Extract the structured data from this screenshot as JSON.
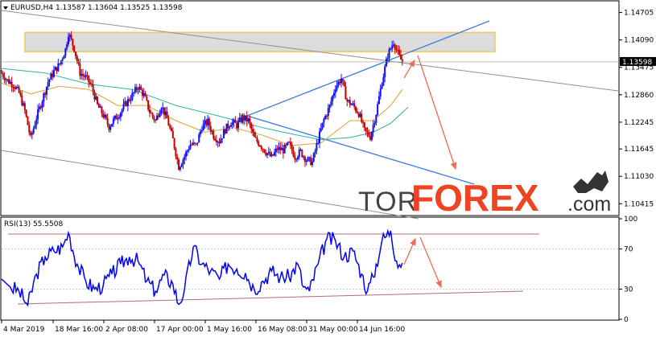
{
  "chart_data": [
    {
      "type": "candlestick",
      "title": "EURUSD,H4  1.13587  1.13604  1.13525  1.13598",
      "symbol": "EURUSD",
      "timeframe": "H4",
      "ohlc_header": [
        "1.13587",
        "1.13604",
        "1.13525",
        "1.13598"
      ],
      "current_price_label": "1.13598",
      "ylim": [
        1.1015,
        1.1495
      ],
      "y_ticks": [
        "1.14705",
        "1.14090",
        "1.13475",
        "1.12860",
        "1.12245",
        "1.11645",
        "1.11030",
        "1.10415"
      ],
      "y_tick_values": [
        1.14705,
        1.1409,
        1.13475,
        1.1286,
        1.12245,
        1.11645,
        1.1103,
        1.10415
      ],
      "x_tick_labels": [
        "4 Mar 2019",
        "18 Mar 16:00",
        "2 Apr 08:00",
        "17 Apr 00:00",
        "1 May 16:00",
        "16 May 08:00",
        "31 May 00:00",
        "14 Jun 16:00"
      ],
      "close_path": [
        [
          0,
          1.1335
        ],
        [
          2,
          1.1318
        ],
        [
          4,
          1.131
        ],
        [
          6,
          1.129
        ],
        [
          8,
          1.125
        ],
        [
          10,
          1.1188
        ],
        [
          12,
          1.1235
        ],
        [
          14,
          1.1275
        ],
        [
          16,
          1.1315
        ],
        [
          18,
          1.1338
        ],
        [
          20,
          1.1355
        ],
        [
          22,
          1.1388
        ],
        [
          23,
          1.1425
        ],
        [
          25,
          1.139
        ],
        [
          27,
          1.1335
        ],
        [
          29,
          1.1325
        ],
        [
          31,
          1.1305
        ],
        [
          33,
          1.1262
        ],
        [
          35,
          1.124
        ],
        [
          37,
          1.1215
        ],
        [
          39,
          1.1232
        ],
        [
          41,
          1.1248
        ],
        [
          43,
          1.1268
        ],
        [
          45,
          1.1285
        ],
        [
          47,
          1.1305
        ],
        [
          49,
          1.1285
        ],
        [
          51,
          1.1248
        ],
        [
          53,
          1.1228
        ],
        [
          55,
          1.1262
        ],
        [
          57,
          1.1232
        ],
        [
          59,
          1.1185
        ],
        [
          61,
          1.1125
        ],
        [
          63,
          1.1148
        ],
        [
          65,
          1.1175
        ],
        [
          67,
          1.1172
        ],
        [
          69,
          1.1215
        ],
        [
          71,
          1.1225
        ],
        [
          73,
          1.1195
        ],
        [
          75,
          1.1182
        ],
        [
          77,
          1.1208
        ],
        [
          79,
          1.1225
        ],
        [
          81,
          1.1218
        ],
        [
          83,
          1.1235
        ],
        [
          85,
          1.1228
        ],
        [
          87,
          1.1188
        ],
        [
          89,
          1.1175
        ],
        [
          91,
          1.1158
        ],
        [
          93,
          1.1145
        ],
        [
          95,
          1.1165
        ],
        [
          97,
          1.1162
        ],
        [
          99,
          1.1175
        ],
        [
          101,
          1.1148
        ],
        [
          103,
          1.1158
        ],
        [
          105,
          1.114
        ],
        [
          107,
          1.1135
        ],
        [
          109,
          1.1185
        ],
        [
          111,
          1.123
        ],
        [
          113,
          1.126
        ],
        [
          115,
          1.1305
        ],
        [
          117,
          1.1322
        ],
        [
          119,
          1.1272
        ],
        [
          121,
          1.1262
        ],
        [
          123,
          1.1245
        ],
        [
          125,
          1.1205
        ],
        [
          127,
          1.1192
        ],
        [
          129,
          1.1245
        ],
        [
          131,
          1.1315
        ],
        [
          133,
          1.1375
        ],
        [
          135,
          1.1405
        ],
        [
          137,
          1.137
        ],
        [
          138,
          1.136
        ]
      ],
      "series": [
        {
          "name": "",
          "role": "moving-average-orange",
          "color": "#e0a030",
          "values": [
            [
              0,
              1.1312
            ],
            [
              10,
              1.1288
            ],
            [
              20,
              1.1305
            ],
            [
              30,
              1.1298
            ],
            [
              40,
              1.1262
            ],
            [
              50,
              1.1262
            ],
            [
              60,
              1.1228
            ],
            [
              70,
              1.1202
            ],
            [
              80,
              1.1212
            ],
            [
              90,
              1.1195
            ],
            [
              100,
              1.1172
            ],
            [
              110,
              1.1178
            ],
            [
              120,
              1.1228
            ],
            [
              128,
              1.1228
            ],
            [
              134,
              1.1262
            ],
            [
              138,
              1.1298
            ]
          ]
        },
        {
          "name": "",
          "role": "moving-average-teal",
          "color": "#30b0a0",
          "values": [
            [
              0,
              1.1345
            ],
            [
              15,
              1.1335
            ],
            [
              30,
              1.131
            ],
            [
              45,
              1.1298
            ],
            [
              60,
              1.1262
            ],
            [
              75,
              1.1238
            ],
            [
              90,
              1.1212
            ],
            [
              100,
              1.1198
            ],
            [
              110,
              1.1185
            ],
            [
              120,
              1.119
            ],
            [
              128,
              1.1202
            ],
            [
              134,
              1.1222
            ],
            [
              140,
              1.1258
            ]
          ]
        }
      ],
      "resistance_zone": [
        1.1395,
        1.1415
      ],
      "colors": {
        "bullish": "#1010ff",
        "bearish": "#c00000",
        "trendline_gray": "#909090",
        "trendline_blue": "#3b7dd8",
        "forecast": "#ee6a5a",
        "zone_border": "#f5c55a",
        "zone_fill": "#dcdcdc"
      }
    },
    {
      "type": "line",
      "title": "RSI(13) 55.5508",
      "indicator": "RSI(13)",
      "value_label": "55.5508",
      "ylim": [
        0,
        100
      ],
      "y_ticks": [
        "100",
        "70",
        "30",
        "0"
      ],
      "y_tick_values": [
        100,
        70,
        30,
        0
      ],
      "levels": [
        70,
        30
      ],
      "color": "#0000ff",
      "values": [
        [
          0,
          40
        ],
        [
          3,
          32
        ],
        [
          6,
          28
        ],
        [
          9,
          14
        ],
        [
          12,
          45
        ],
        [
          15,
          62
        ],
        [
          18,
          68
        ],
        [
          21,
          72
        ],
        [
          23,
          86
        ],
        [
          26,
          55
        ],
        [
          29,
          38
        ],
        [
          32,
          30
        ],
        [
          35,
          34
        ],
        [
          38,
          45
        ],
        [
          41,
          55
        ],
        [
          44,
          62
        ],
        [
          47,
          58
        ],
        [
          50,
          38
        ],
        [
          53,
          28
        ],
        [
          56,
          44
        ],
        [
          59,
          35
        ],
        [
          61,
          15
        ],
        [
          63,
          30
        ],
        [
          66,
          72
        ],
        [
          69,
          55
        ],
        [
          72,
          48
        ],
        [
          75,
          40
        ],
        [
          78,
          55
        ],
        [
          81,
          50
        ],
        [
          84,
          46
        ],
        [
          87,
          30
        ],
        [
          90,
          38
        ],
        [
          93,
          48
        ],
        [
          96,
          42
        ],
        [
          99,
          42
        ],
        [
          102,
          55
        ],
        [
          104,
          32
        ],
        [
          106,
          28
        ],
        [
          109,
          55
        ],
        [
          112,
          80
        ],
        [
          115,
          78
        ],
        [
          118,
          62
        ],
        [
          121,
          68
        ],
        [
          124,
          45
        ],
        [
          126,
          28
        ],
        [
          128,
          42
        ],
        [
          131,
          78
        ],
        [
          134,
          88
        ],
        [
          136,
          58
        ],
        [
          138,
          56
        ]
      ]
    }
  ],
  "watermark": {
    "part1": "TOR",
    "part2": "FOREX",
    "part3": ".com"
  }
}
